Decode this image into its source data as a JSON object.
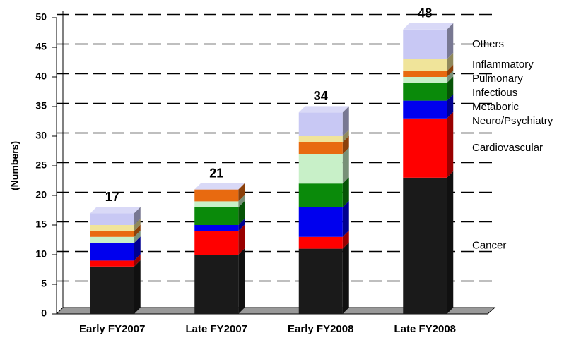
{
  "chart_data": {
    "type": "stacked_bar_3d",
    "y_label": "(Numbers)",
    "categories": [
      "Early FY2007",
      "Late FY2007",
      "Early FY2008",
      "Late FY2008"
    ],
    "series": [
      {
        "name": "Cancer",
        "color": "#1a1a1a",
        "values": [
          8,
          10,
          11,
          23
        ]
      },
      {
        "name": "Cardiovascular",
        "color": "#ff0000",
        "values": [
          1,
          4,
          2,
          10
        ]
      },
      {
        "name": "Neuro/Psychiatry",
        "color": "#0000ee",
        "values": [
          3,
          1,
          5,
          3
        ]
      },
      {
        "name": "Metaboric",
        "color": "#0a8a0a",
        "values": [
          0,
          3,
          4,
          3
        ]
      },
      {
        "name": "Infectious",
        "color": "#c8f0c8",
        "values": [
          1,
          1,
          5,
          1
        ]
      },
      {
        "name": "Pulmonary",
        "color": "#e86a10",
        "values": [
          1,
          2,
          2,
          1
        ]
      },
      {
        "name": "Inflammatory",
        "color": "#f0e49a",
        "values": [
          1,
          0,
          1,
          2
        ]
      },
      {
        "name": "Others",
        "color": "#c8c8f4",
        "values": [
          2,
          0,
          4,
          5
        ]
      }
    ],
    "totals": [
      17,
      21,
      34,
      48
    ],
    "ylim": [
      0,
      50
    ],
    "yticks": [
      0,
      5,
      10,
      15,
      20,
      25,
      30,
      35,
      40,
      45,
      50
    ],
    "grid": true
  }
}
